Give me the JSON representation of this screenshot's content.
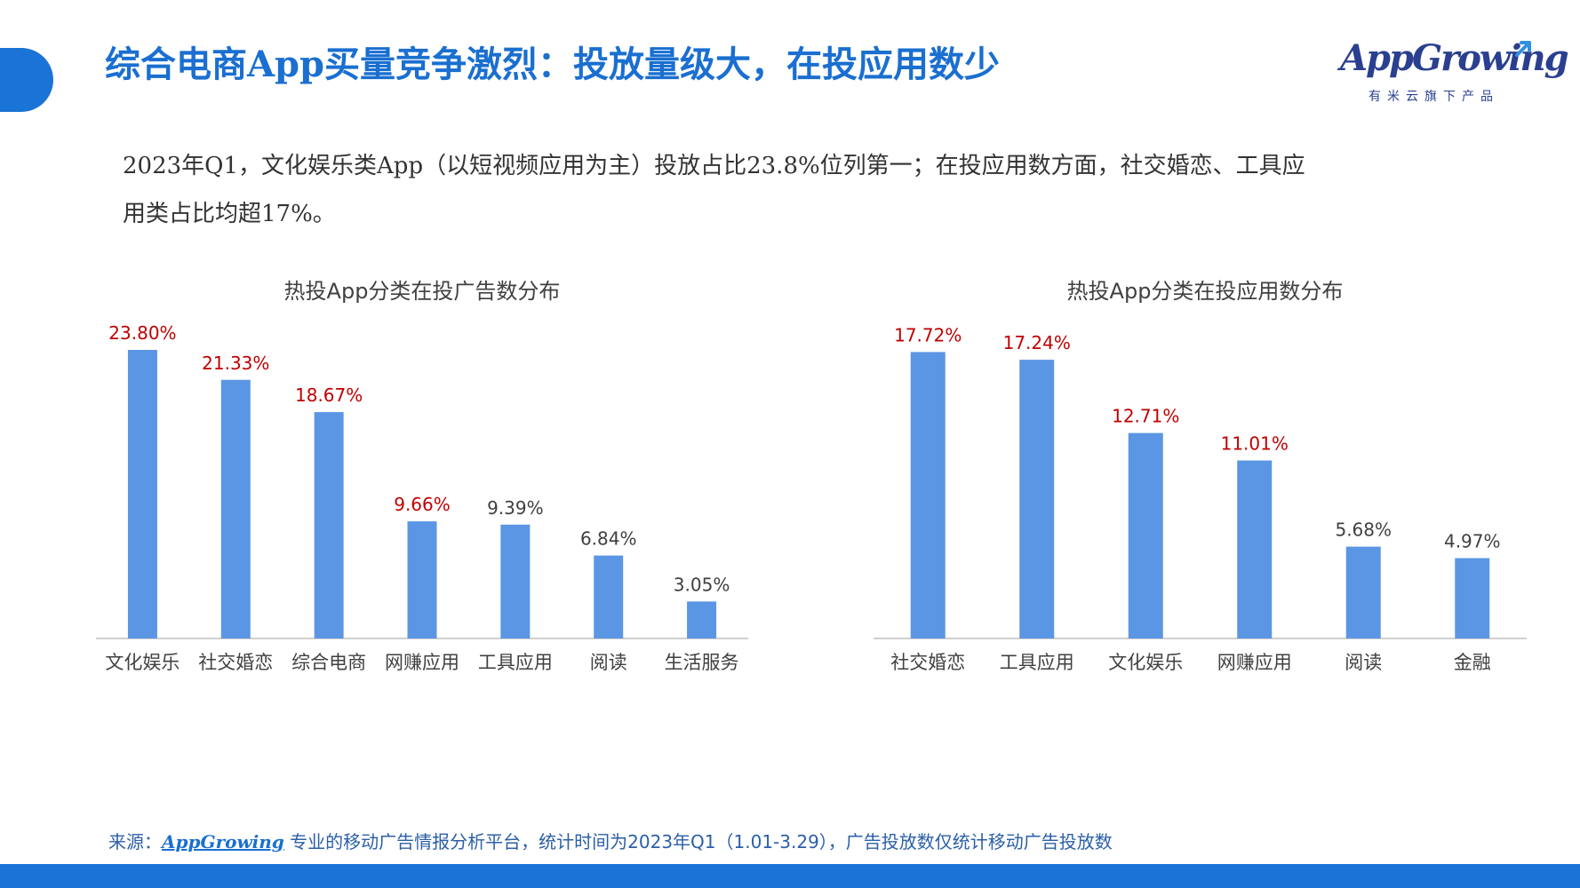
{
  "header": {
    "title": "综合电商App买量竞争激烈：投放量级大，在投应用数少"
  },
  "logo": {
    "brand": "AppGrowing",
    "subtitle": "有米云旗下产品",
    "colors": {
      "main": "#2a3f8f",
      "accent": "#2f8fe0"
    }
  },
  "intro": {
    "text": "2023年Q1，文化娱乐类App（以短视频应用为主）投放占比23.8%位列第一；在投应用数方面，社交婚恋、工具应用类占比均超17%。"
  },
  "footer": {
    "source_label": "来源：",
    "source_brand": "AppGrowing",
    "source_text": "专业的移动广告情报分析平台，统计时间为2023年Q1（1.01-3.29），广告投放数仅统计移动广告投放数"
  },
  "colors": {
    "bar": "#5b96e4",
    "highlight_label": "#c00000",
    "normal_label": "#404040",
    "axis": "#bfbfbf",
    "brand_blue": "#1a73d6"
  },
  "chart_data": [
    {
      "type": "bar",
      "title": "热投App分类在投广告数分布",
      "categories": [
        "文化娱乐",
        "社交婚恋",
        "综合电商",
        "网赚应用",
        "工具应用",
        "阅读",
        "生活服务"
      ],
      "values": [
        23.8,
        21.33,
        18.67,
        9.66,
        9.39,
        6.84,
        3.05
      ],
      "labels": [
        "23.80%",
        "21.33%",
        "18.67%",
        "9.66%",
        "9.39%",
        "6.84%",
        "3.05%"
      ],
      "highlighted": [
        true,
        true,
        true,
        true,
        false,
        false,
        false
      ],
      "ylim": [
        0,
        26
      ],
      "grid": false
    },
    {
      "type": "bar",
      "title": "热投App分类在投应用数分布",
      "categories": [
        "社交婚恋",
        "工具应用",
        "文化娱乐",
        "网赚应用",
        "阅读",
        "金融"
      ],
      "values": [
        17.72,
        17.24,
        12.71,
        11.01,
        5.68,
        4.97
      ],
      "labels": [
        "17.72%",
        "17.24%",
        "12.71%",
        "11.01%",
        "5.68%",
        "4.97%"
      ],
      "highlighted": [
        true,
        true,
        true,
        true,
        false,
        false
      ],
      "ylim": [
        0,
        19.5
      ],
      "grid": false
    }
  ]
}
